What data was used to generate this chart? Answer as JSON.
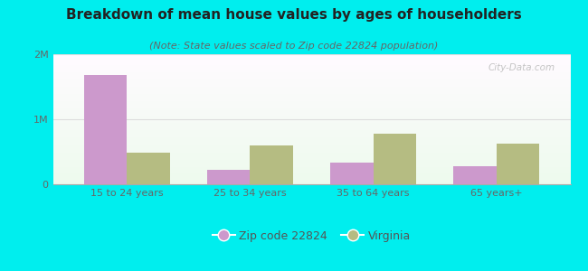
{
  "title": "Breakdown of mean house values by ages of householders",
  "subtitle": "(Note: State values scaled to Zip code 22824 population)",
  "categories": [
    "15 to 24 years",
    "25 to 34 years",
    "35 to 64 years",
    "65 years+"
  ],
  "zip_values": [
    1680000,
    220000,
    330000,
    280000
  ],
  "va_values": [
    480000,
    600000,
    780000,
    630000
  ],
  "zip_color": "#cc99cc",
  "va_color": "#b5bc82",
  "bg_color": "#00eeee",
  "ylim": [
    0,
    2000000
  ],
  "yticks": [
    0,
    1000000,
    2000000
  ],
  "ytick_labels": [
    "0",
    "1M",
    "2M"
  ],
  "legend_zip_label": "Zip code 22824",
  "legend_va_label": "Virginia",
  "bar_width": 0.35,
  "title_fontsize": 11,
  "subtitle_fontsize": 8,
  "watermark": "City-Data.com"
}
